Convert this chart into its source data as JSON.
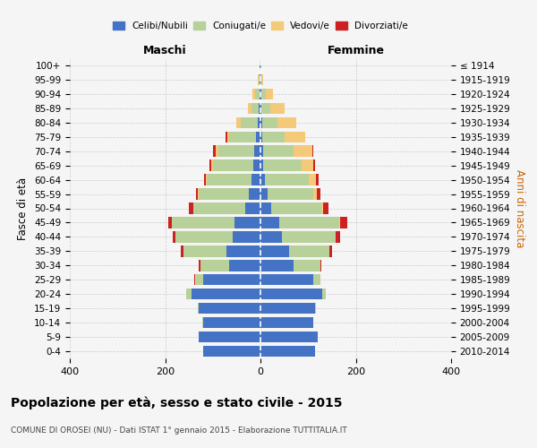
{
  "age_groups_bottom_to_top": [
    "0-4",
    "5-9",
    "10-14",
    "15-19",
    "20-24",
    "25-29",
    "30-34",
    "35-39",
    "40-44",
    "45-49",
    "50-54",
    "55-59",
    "60-64",
    "65-69",
    "70-74",
    "75-79",
    "80-84",
    "85-89",
    "90-94",
    "95-99",
    "100+"
  ],
  "birth_years_bottom_to_top": [
    "2010-2014",
    "2005-2009",
    "2000-2004",
    "1995-1999",
    "1990-1994",
    "1985-1989",
    "1980-1984",
    "1975-1979",
    "1970-1974",
    "1965-1969",
    "1960-1964",
    "1955-1959",
    "1950-1954",
    "1945-1949",
    "1940-1944",
    "1935-1939",
    "1930-1934",
    "1925-1929",
    "1920-1924",
    "1915-1919",
    "≤ 1914"
  ],
  "males_celibi": [
    120,
    130,
    120,
    130,
    145,
    120,
    65,
    72,
    58,
    55,
    32,
    25,
    18,
    15,
    14,
    10,
    5,
    3,
    2,
    1,
    1
  ],
  "males_coniugati": [
    0,
    0,
    2,
    2,
    10,
    15,
    60,
    90,
    120,
    130,
    108,
    105,
    95,
    85,
    75,
    55,
    36,
    16,
    9,
    3,
    1
  ],
  "males_vedovi": [
    0,
    0,
    0,
    0,
    0,
    2,
    0,
    0,
    0,
    0,
    0,
    1,
    1,
    3,
    5,
    5,
    10,
    8,
    5,
    1,
    0
  ],
  "males_divorziati": [
    0,
    0,
    0,
    0,
    0,
    2,
    4,
    5,
    6,
    8,
    10,
    5,
    5,
    4,
    5,
    3,
    0,
    0,
    0,
    0,
    0
  ],
  "females_nubili": [
    115,
    120,
    110,
    115,
    130,
    110,
    70,
    60,
    45,
    40,
    22,
    15,
    10,
    6,
    5,
    3,
    3,
    2,
    1,
    0,
    0
  ],
  "females_coniugate": [
    0,
    0,
    1,
    2,
    8,
    15,
    55,
    85,
    112,
    125,
    105,
    95,
    92,
    80,
    65,
    48,
    32,
    18,
    10,
    3,
    1
  ],
  "females_vedove": [
    0,
    0,
    0,
    0,
    0,
    0,
    0,
    0,
    1,
    2,
    5,
    8,
    15,
    25,
    38,
    42,
    40,
    30,
    15,
    2,
    0
  ],
  "females_divorziate": [
    0,
    0,
    0,
    0,
    0,
    0,
    3,
    5,
    10,
    15,
    10,
    8,
    5,
    4,
    3,
    0,
    0,
    0,
    0,
    0,
    0
  ],
  "color_celibi": "#4472c4",
  "color_coniugati": "#b8d09a",
  "color_vedovi": "#f5c97a",
  "color_divorziati": "#cc2222",
  "title": "Popolazione per età, sesso e stato civile - 2015",
  "subtitle": "COMUNE DI OROSEI (NU) - Dati ISTAT 1° gennaio 2015 - Elaborazione TUTTITALIA.IT",
  "label_maschi": "Maschi",
  "label_femmine": "Femmine",
  "ylabel_left": "Fasce di età",
  "ylabel_right": "Anni di nascita",
  "legend_labels": [
    "Celibi/Nubili",
    "Coniugati/e",
    "Vedovi/e",
    "Divorziati/e"
  ],
  "xlim": 400,
  "bg_color": "#f5f5f5",
  "grid_color": "#cccccc"
}
